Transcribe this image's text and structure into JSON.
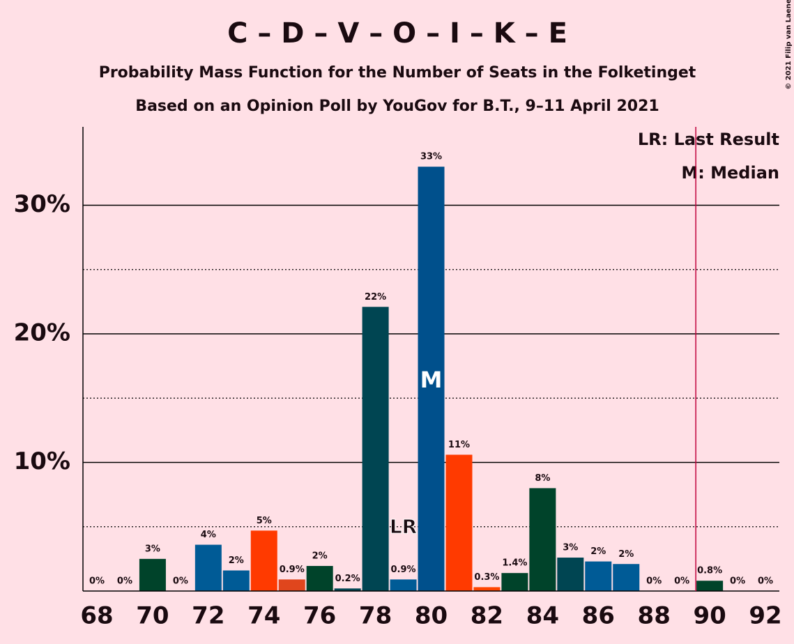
{
  "chart_data": {
    "type": "bar",
    "title": "C – D – V – O – I – K – E",
    "subtitle": "Probability Mass Function for the Number of Seats in the Folketinget",
    "subtitle2": "Based on an Opinion Poll by YouGov for B.T., 9–11 April 2021",
    "copyright": "© 2021 Filip van Laenen",
    "categories": [
      68,
      null,
      70,
      null,
      72,
      null,
      74,
      null,
      76,
      null,
      78,
      null,
      80,
      null,
      82,
      null,
      84,
      null,
      86,
      null,
      88,
      null,
      90,
      null,
      92
    ],
    "values": [
      0,
      0,
      2.5,
      0,
      3.6,
      1.6,
      4.7,
      0.9,
      1.95,
      0.2,
      22.1,
      0.9,
      33.0,
      10.6,
      0.3,
      1.4,
      8.0,
      2.6,
      2.3,
      2.1,
      0,
      0,
      0.8,
      0,
      0
    ],
    "value_labels": [
      "0%",
      "0%",
      "3%",
      "0%",
      "4%",
      "2%",
      "5%",
      "0.9%",
      "2%",
      "0.2%",
      "22%",
      "0.9%",
      "33%",
      "11%",
      "0.3%",
      "1.4%",
      "8%",
      "3%",
      "2%",
      "2%",
      "0%",
      "0%",
      "0.8%",
      "0%",
      "0%"
    ],
    "colors": [
      "#00432a",
      "#00432a",
      "#00432a",
      "#005b96",
      "#005b96",
      "#005b96",
      "#ff3a00",
      "#e0461d",
      "#00432a",
      "#004552",
      "#004552",
      "#005b96",
      "#00508c",
      "#ff3a00",
      "#ff4400",
      "#00432a",
      "#00432a",
      "#004552",
      "#005b96",
      "#005b96",
      "#00432a",
      "#00432a",
      "#00432a",
      "#00432a",
      "#00432a"
    ],
    "ylim": [
      0,
      36.1
    ],
    "yticks": [
      {
        "value": 10,
        "label": "10%"
      },
      {
        "value": 20,
        "label": "20%"
      },
      {
        "value": 30,
        "label": "30%"
      }
    ],
    "minor_gridlines": [
      5,
      15,
      25
    ],
    "grid": true,
    "last_result": {
      "seats": 79,
      "text": "LR"
    },
    "median": {
      "seats": 80,
      "text": "M"
    },
    "legend": [
      "LR: Last Result",
      "M: Median"
    ],
    "majority_line": 89.5,
    "majority_color": "#c0003a"
  }
}
